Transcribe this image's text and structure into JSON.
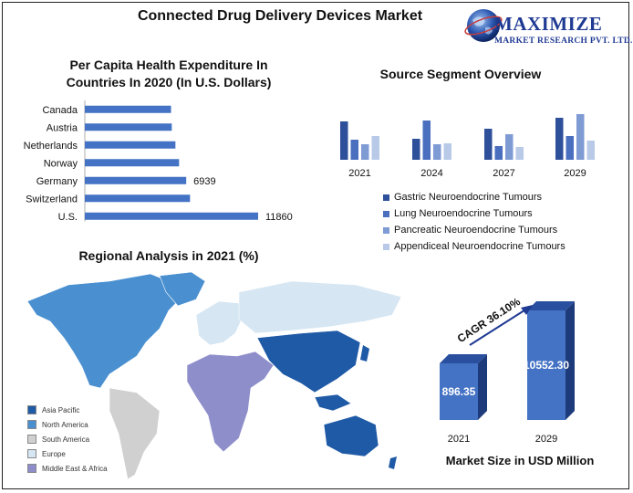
{
  "header": {
    "title": "Connected Drug Delivery Devices Market",
    "logo_main": "MAXIMIZE",
    "logo_sub": "MARKET RESEARCH PVT. LTD."
  },
  "per_capita": {
    "title_line1": "Per Capita Health Expenditure In",
    "title_line2": "Countries In 2020 (In U.S. Dollars)"
  },
  "source_segment": {
    "title": "Source Segment Overview"
  },
  "regional": {
    "title": "Regional Analysis in 2021 (%)"
  },
  "market_size": {
    "label": "Market Size in USD Million",
    "cagr": "CAGR 36.10%"
  },
  "colors": {
    "bar_blue": "#4472c4",
    "asia_pacific": "#1f5aa6",
    "north_america": "#4a90d0",
    "south_america": "#d0d0d0",
    "europe": "#d6e6f2",
    "mea": "#8e8ecb"
  },
  "map_legend": [
    "Asia Pacific",
    "North America",
    "South America",
    "Europe",
    "Middle East & Africa"
  ],
  "chart_data": [
    {
      "type": "bar",
      "orientation": "horizontal",
      "title": "Per Capita Health Expenditure In Countries In 2020 (In U.S. Dollars)",
      "categories": [
        "Canada",
        "Austria",
        "Netherlands",
        "Norway",
        "Germany",
        "Switzerland",
        "U.S."
      ],
      "values": [
        5900,
        5950,
        6200,
        6450,
        6939,
        7200,
        11860
      ],
      "data_labels": [
        null,
        null,
        null,
        null,
        "6939",
        null,
        "11860"
      ],
      "xlim": [
        0,
        12500
      ]
    },
    {
      "type": "bar",
      "title": "Source Segment Overview",
      "categories": [
        "2021",
        "2024",
        "2027",
        "2029"
      ],
      "series": [
        {
          "name": "Gastric Neuroendocrine Tumours",
          "color": "#2e4f9a",
          "values": [
            42,
            23,
            34,
            46
          ]
        },
        {
          "name": "Lung Neuroendocrine Tumours",
          "color": "#4a6fbf",
          "values": [
            22,
            43,
            15,
            26
          ]
        },
        {
          "name": "Pancreatic Neuroendocrine Tumours",
          "color": "#7f9bd4",
          "values": [
            17,
            17,
            28,
            50
          ]
        },
        {
          "name": "Appendiceal Neuroendocrine Tumours",
          "color": "#b9c9e8",
          "values": [
            26,
            18,
            14,
            21
          ]
        }
      ],
      "grid": false,
      "legend": "bottom"
    },
    {
      "type": "bar",
      "title": "Market Size in USD Million",
      "categories": [
        "2021",
        "2029"
      ],
      "values": [
        896.35,
        10552.3
      ],
      "data_labels": [
        "896.35",
        "10552.30"
      ],
      "annotation": "CAGR 36.10%"
    }
  ]
}
